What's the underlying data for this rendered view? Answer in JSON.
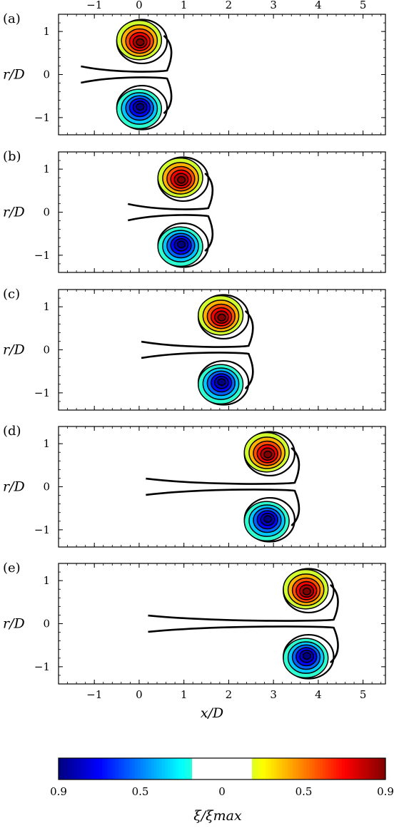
{
  "chart_data": {
    "type": "contour",
    "xlabel": "x/D",
    "ylabel": "r/D",
    "xlim": [
      -1.8,
      5.5
    ],
    "ylim": [
      -1.4,
      1.4
    ],
    "xticks": [
      -1,
      0,
      1,
      2,
      3,
      4,
      5
    ],
    "yticks": [
      -1,
      0,
      1
    ],
    "xtick_labels": [
      "−1",
      "0",
      "1",
      "2",
      "3",
      "4",
      "5"
    ],
    "ytick_labels": [
      "−1",
      "0",
      "1"
    ],
    "panels": [
      {
        "tag": "(a)",
        "ring_center_x": 0.0,
        "ring_radius": 0.8,
        "tail_start_x": -1.3
      },
      {
        "tag": "(b)",
        "ring_center_x": 0.92,
        "ring_radius": 0.8,
        "tail_start_x": -0.25
      },
      {
        "tag": "(c)",
        "ring_center_x": 1.82,
        "ring_radius": 0.8,
        "tail_start_x": 0.05
      },
      {
        "tag": "(d)",
        "ring_center_x": 2.85,
        "ring_radius": 0.8,
        "tail_start_x": 0.15
      },
      {
        "tag": "(e)",
        "ring_center_x": 3.72,
        "ring_radius": 0.8,
        "tail_start_x": 0.2
      }
    ],
    "colorbar": {
      "title": "ξ/ξmax",
      "ticks": [
        "0.9",
        "0.5",
        "0",
        "0.5",
        "0.9"
      ],
      "colormap": "jet",
      "white_band": [
        -0.15,
        0.15
      ]
    }
  }
}
